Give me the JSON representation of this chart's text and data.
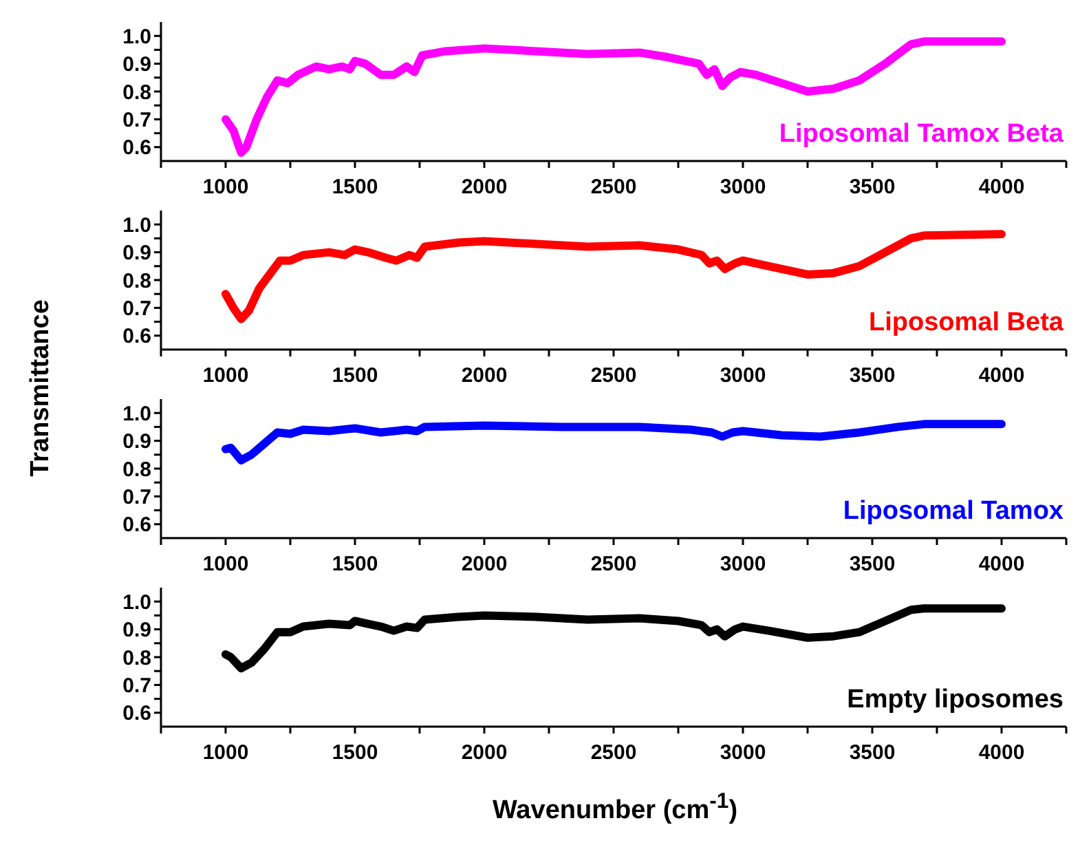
{
  "chart_data": [
    {
      "type": "line",
      "ylabel": "Transmittance",
      "xlim": [
        750,
        4250
      ],
      "ylim": [
        0.55,
        1.05
      ],
      "xticks": [
        {
          "value": 750,
          "label": null
        },
        1000,
        {
          "value": 1250,
          "label": null
        },
        1500,
        {
          "value": 1750,
          "label": null
        },
        2000,
        {
          "value": 2250,
          "label": null
        },
        2500,
        {
          "value": 2750,
          "label": null
        },
        3000,
        {
          "value": 3250,
          "label": null
        },
        3500,
        {
          "value": 3750,
          "label": null
        },
        4000,
        {
          "value": 4250,
          "label": null
        }
      ],
      "yticks": [
        0.6,
        {
          "value": 0.65,
          "label": null
        },
        0.7,
        {
          "value": 0.75,
          "label": null
        },
        0.8,
        {
          "value": 0.85,
          "label": null
        },
        0.9,
        {
          "value": 0.95,
          "label": null
        },
        {
          "value": 1,
          "label": "1.0"
        }
      ],
      "grid": false,
      "legend": false,
      "marker": "none",
      "line_style": "solid",
      "x": [
        1000,
        1030,
        1060,
        1080,
        1120,
        1160,
        1200,
        1240,
        1280,
        1350,
        1400,
        1450,
        1480,
        1500,
        1540,
        1600,
        1650,
        1700,
        1730,
        1760,
        1850,
        2000,
        2200,
        2400,
        2600,
        2700,
        2830,
        2860,
        2890,
        2920,
        2950,
        2990,
        3050,
        3150,
        3250,
        3350,
        3450,
        3550,
        3650,
        3700,
        4000
      ],
      "series": [
        {
          "name": "Liposomal Tamox Beta",
          "color": "#ff00ff",
          "values": [
            0.7,
            0.66,
            0.58,
            0.6,
            0.7,
            0.78,
            0.84,
            0.83,
            0.86,
            0.89,
            0.88,
            0.89,
            0.88,
            0.91,
            0.9,
            0.86,
            0.86,
            0.89,
            0.87,
            0.93,
            0.945,
            0.955,
            0.945,
            0.935,
            0.94,
            0.925,
            0.9,
            0.86,
            0.88,
            0.82,
            0.85,
            0.87,
            0.86,
            0.83,
            0.8,
            0.81,
            0.84,
            0.9,
            0.97,
            0.98,
            0.98
          ]
        }
      ]
    },
    {
      "type": "line",
      "xlim": [
        750,
        4250
      ],
      "ylim": [
        0.55,
        1.05
      ],
      "xticks": [
        {
          "value": 750,
          "label": null
        },
        1000,
        {
          "value": 1250,
          "label": null
        },
        1500,
        {
          "value": 1750,
          "label": null
        },
        2000,
        {
          "value": 2250,
          "label": null
        },
        2500,
        {
          "value": 2750,
          "label": null
        },
        3000,
        {
          "value": 3250,
          "label": null
        },
        3500,
        {
          "value": 3750,
          "label": null
        },
        4000,
        {
          "value": 4250,
          "label": null
        }
      ],
      "yticks": [
        0.6,
        {
          "value": 0.65,
          "label": null
        },
        0.7,
        {
          "value": 0.75,
          "label": null
        },
        0.8,
        {
          "value": 0.85,
          "label": null
        },
        0.9,
        {
          "value": 0.95,
          "label": null
        },
        {
          "value": 1,
          "label": "1.0"
        }
      ],
      "grid": false,
      "legend": false,
      "marker": "none",
      "line_style": "solid",
      "x": [
        1000,
        1030,
        1060,
        1090,
        1130,
        1170,
        1210,
        1250,
        1300,
        1400,
        1460,
        1500,
        1550,
        1620,
        1660,
        1710,
        1740,
        1770,
        1900,
        2000,
        2200,
        2400,
        2600,
        2750,
        2840,
        2870,
        2900,
        2930,
        2970,
        3000,
        3100,
        3250,
        3350,
        3450,
        3550,
        3650,
        3700,
        4000
      ],
      "series": [
        {
          "name": "Liposomal Beta",
          "color": "#ff0000",
          "values": [
            0.75,
            0.7,
            0.66,
            0.69,
            0.77,
            0.82,
            0.87,
            0.87,
            0.89,
            0.9,
            0.89,
            0.91,
            0.9,
            0.88,
            0.87,
            0.89,
            0.88,
            0.92,
            0.935,
            0.94,
            0.93,
            0.92,
            0.925,
            0.91,
            0.89,
            0.86,
            0.87,
            0.84,
            0.86,
            0.87,
            0.85,
            0.82,
            0.825,
            0.85,
            0.9,
            0.95,
            0.96,
            0.965
          ]
        }
      ]
    },
    {
      "type": "line",
      "xlim": [
        750,
        4250
      ],
      "ylim": [
        0.55,
        1.05
      ],
      "xticks": [
        {
          "value": 750,
          "label": null
        },
        1000,
        {
          "value": 1250,
          "label": null
        },
        1500,
        {
          "value": 1750,
          "label": null
        },
        2000,
        {
          "value": 2250,
          "label": null
        },
        2500,
        {
          "value": 2750,
          "label": null
        },
        3000,
        {
          "value": 3250,
          "label": null
        },
        3500,
        {
          "value": 3750,
          "label": null
        },
        4000,
        {
          "value": 4250,
          "label": null
        }
      ],
      "yticks": [
        0.6,
        {
          "value": 0.65,
          "label": null
        },
        0.7,
        {
          "value": 0.75,
          "label": null
        },
        0.8,
        {
          "value": 0.85,
          "label": null
        },
        0.9,
        {
          "value": 0.95,
          "label": null
        },
        {
          "value": 1,
          "label": "1.0"
        }
      ],
      "grid": false,
      "legend": false,
      "marker": "none",
      "line_style": "solid",
      "x": [
        1000,
        1020,
        1060,
        1100,
        1150,
        1200,
        1250,
        1300,
        1400,
        1500,
        1600,
        1700,
        1740,
        1770,
        2000,
        2300,
        2600,
        2800,
        2880,
        2920,
        2960,
        3000,
        3150,
        3300,
        3450,
        3600,
        3700,
        4000
      ],
      "series": [
        {
          "name": "Liposomal Tamox",
          "color": "#0000ff",
          "values": [
            0.87,
            0.875,
            0.83,
            0.85,
            0.89,
            0.93,
            0.925,
            0.94,
            0.935,
            0.945,
            0.93,
            0.94,
            0.935,
            0.95,
            0.955,
            0.95,
            0.95,
            0.94,
            0.93,
            0.915,
            0.93,
            0.935,
            0.92,
            0.915,
            0.93,
            0.95,
            0.96,
            0.96
          ]
        }
      ]
    },
    {
      "type": "line",
      "xlabel": "Wavenumber (cm$^{-1}$)",
      "xlim": [
        750,
        4250
      ],
      "ylim": [
        0.55,
        1.05
      ],
      "xticks": [
        {
          "value": 750,
          "label": null
        },
        1000,
        {
          "value": 1250,
          "label": null
        },
        1500,
        {
          "value": 1750,
          "label": null
        },
        2000,
        {
          "value": 2250,
          "label": null
        },
        2500,
        {
          "value": 2750,
          "label": null
        },
        3000,
        {
          "value": 3250,
          "label": null
        },
        3500,
        {
          "value": 3750,
          "label": null
        },
        4000,
        {
          "value": 4250,
          "label": null
        }
      ],
      "yticks": [
        0.6,
        {
          "value": 0.65,
          "label": null
        },
        0.7,
        {
          "value": 0.75,
          "label": null
        },
        0.8,
        {
          "value": 0.85,
          "label": null
        },
        0.9,
        {
          "value": 0.95,
          "label": null
        },
        {
          "value": 1,
          "label": "1.0"
        }
      ],
      "grid": false,
      "legend": false,
      "marker": "none",
      "line_style": "solid",
      "x": [
        1000,
        1020,
        1060,
        1100,
        1150,
        1200,
        1250,
        1300,
        1400,
        1480,
        1500,
        1550,
        1600,
        1650,
        1700,
        1740,
        1770,
        1900,
        2000,
        2200,
        2400,
        2600,
        2750,
        2840,
        2870,
        2900,
        2930,
        2970,
        3000,
        3100,
        3250,
        3350,
        3450,
        3550,
        3650,
        3700,
        4000
      ],
      "series": [
        {
          "name": "Empty liposomes",
          "color": "#000000",
          "values": [
            0.81,
            0.8,
            0.76,
            0.78,
            0.83,
            0.89,
            0.89,
            0.91,
            0.92,
            0.915,
            0.93,
            0.92,
            0.91,
            0.895,
            0.91,
            0.905,
            0.935,
            0.945,
            0.95,
            0.945,
            0.935,
            0.94,
            0.93,
            0.915,
            0.89,
            0.9,
            0.875,
            0.9,
            0.91,
            0.895,
            0.87,
            0.875,
            0.89,
            0.93,
            0.97,
            0.975,
            0.975
          ]
        }
      ]
    }
  ]
}
